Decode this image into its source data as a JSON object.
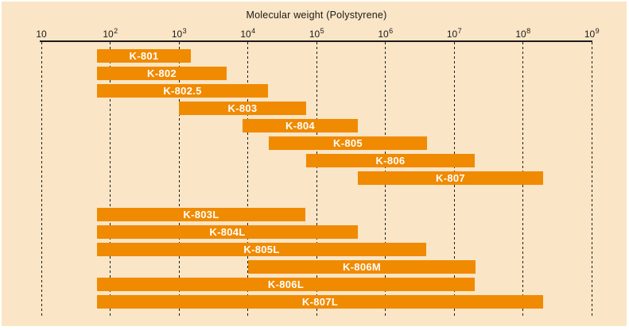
{
  "chart_data": {
    "type": "bar",
    "subtype": "horizontal-log-range-bars",
    "title": "Molecular weight (Polystyrene)",
    "x_scale": "log10",
    "x_min": 10,
    "x_max": 1000000000,
    "x_tick_base": "10",
    "x_tick_exponents": [
      "",
      "2",
      "3",
      "4",
      "5",
      "6",
      "7",
      "8",
      "9"
    ],
    "grid": "dashed-vertical",
    "legend": "none",
    "colors": {
      "background": "#FAE5C6",
      "bar": "#F08A00",
      "bar_label": "#FFFFFF",
      "axis_text": "#1A1A1A",
      "gridline": "#1C1C1C",
      "frame": "#FFFFFF"
    },
    "series": [
      {
        "label": "K-801",
        "mw_min": 65,
        "mw_max": 1500,
        "group": 0
      },
      {
        "label": "K-802",
        "mw_min": 65,
        "mw_max": 5000,
        "group": 0
      },
      {
        "label": "K-802.5",
        "mw_min": 65,
        "mw_max": 20000,
        "group": 0
      },
      {
        "label": "K-803",
        "mw_min": 1000,
        "mw_max": 70000,
        "group": 0
      },
      {
        "label": "K-804",
        "mw_min": 8500,
        "mw_max": 400000,
        "group": 0
      },
      {
        "label": "K-805",
        "mw_min": 20000,
        "mw_max": 4000000,
        "group": 0
      },
      {
        "label": "K-806",
        "mw_min": 70000,
        "mw_max": 20000000,
        "group": 0
      },
      {
        "label": "K-807",
        "mw_min": 400000,
        "mw_max": 200000000,
        "group": 0
      },
      {
        "label": "K-803L",
        "mw_min": 65,
        "mw_max": 70000,
        "group": 1
      },
      {
        "label": "K-804L",
        "mw_min": 65,
        "mw_max": 400000,
        "group": 1
      },
      {
        "label": "K-805L",
        "mw_min": 65,
        "mw_max": 4000000,
        "group": 1
      },
      {
        "label": "K-806M",
        "mw_min": 10000,
        "mw_max": 20000000,
        "group": 1
      },
      {
        "label": "K-806L",
        "mw_min": 65,
        "mw_max": 20000000,
        "group": 1
      },
      {
        "label": "K-807L",
        "mw_min": 65,
        "mw_max": 200000000,
        "group": 1
      }
    ]
  }
}
